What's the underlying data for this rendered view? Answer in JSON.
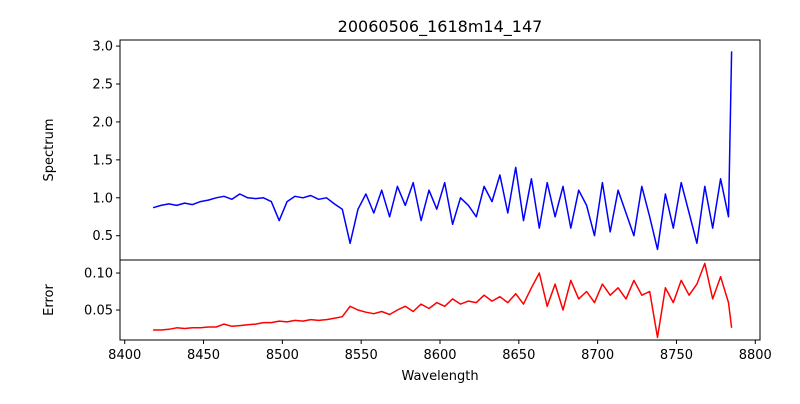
{
  "chart_data": [
    {
      "type": "line",
      "title": "20060506_1618m14_147",
      "xlabel": "",
      "ylabel": "Spectrum",
      "xlim": [
        8397,
        8803
      ],
      "ylim": [
        0.18,
        3.08
      ],
      "yticks": [
        0.5,
        1.0,
        1.5,
        2.0,
        2.5,
        3.0
      ],
      "ytick_labels": [
        "0.5",
        "1.0",
        "1.5",
        "2.0",
        "2.5",
        "3.0"
      ],
      "grid": false,
      "series": [
        {
          "name": "Spectrum",
          "color": "#0000ff",
          "x": [
            8418,
            8423,
            8428,
            8433,
            8438,
            8443,
            8448,
            8453,
            8458,
            8463,
            8468,
            8473,
            8478,
            8483,
            8488,
            8493,
            8498,
            8503,
            8508,
            8513,
            8518,
            8523,
            8528,
            8533,
            8538,
            8543,
            8548,
            8553,
            8558,
            8563,
            8568,
            8573,
            8578,
            8583,
            8588,
            8593,
            8598,
            8603,
            8608,
            8613,
            8618,
            8623,
            8628,
            8633,
            8638,
            8643,
            8648,
            8653,
            8658,
            8663,
            8668,
            8673,
            8678,
            8683,
            8688,
            8693,
            8698,
            8703,
            8708,
            8713,
            8718,
            8723,
            8728,
            8733,
            8738,
            8743,
            8748,
            8753,
            8758,
            8763,
            8768,
            8773,
            8778,
            8783,
            8785
          ],
          "y": [
            0.87,
            0.9,
            0.92,
            0.9,
            0.93,
            0.91,
            0.95,
            0.97,
            1.0,
            1.02,
            0.98,
            1.05,
            1.0,
            0.99,
            1.0,
            0.95,
            0.7,
            0.95,
            1.02,
            1.0,
            1.03,
            0.98,
            1.0,
            0.92,
            0.85,
            0.4,
            0.85,
            1.05,
            0.8,
            1.1,
            0.75,
            1.15,
            0.9,
            1.2,
            0.7,
            1.1,
            0.85,
            1.2,
            0.65,
            1.0,
            0.9,
            0.75,
            1.15,
            0.95,
            1.3,
            0.8,
            1.4,
            0.7,
            1.25,
            0.6,
            1.2,
            0.75,
            1.15,
            0.6,
            1.1,
            0.9,
            0.5,
            1.2,
            0.55,
            1.1,
            0.8,
            0.5,
            1.15,
            0.75,
            0.32,
            1.05,
            0.6,
            1.2,
            0.8,
            0.4,
            1.15,
            0.6,
            1.25,
            0.75,
            2.93
          ]
        }
      ]
    },
    {
      "type": "line",
      "xlabel": "Wavelength",
      "ylabel": "Error",
      "xlim": [
        8397,
        8803
      ],
      "ylim": [
        0.0095,
        0.1176
      ],
      "xticks": [
        8400,
        8450,
        8500,
        8550,
        8600,
        8650,
        8700,
        8750,
        8800
      ],
      "xtick_labels": [
        "8400",
        "8450",
        "8500",
        "8550",
        "8600",
        "8650",
        "8700",
        "8750",
        "8800"
      ],
      "yticks": [
        0.05,
        0.1
      ],
      "ytick_labels": [
        "0.05",
        "0.10"
      ],
      "grid": false,
      "series": [
        {
          "name": "Error",
          "color": "#ff0000",
          "x": [
            8418,
            8423,
            8428,
            8433,
            8438,
            8443,
            8448,
            8453,
            8458,
            8463,
            8468,
            8473,
            8478,
            8483,
            8488,
            8493,
            8498,
            8503,
            8508,
            8513,
            8518,
            8523,
            8528,
            8533,
            8538,
            8543,
            8548,
            8553,
            8558,
            8563,
            8568,
            8573,
            8578,
            8583,
            8588,
            8593,
            8598,
            8603,
            8608,
            8613,
            8618,
            8623,
            8628,
            8633,
            8638,
            8643,
            8648,
            8653,
            8658,
            8663,
            8668,
            8673,
            8678,
            8683,
            8688,
            8693,
            8698,
            8703,
            8708,
            8713,
            8718,
            8723,
            8728,
            8733,
            8738,
            8743,
            8748,
            8753,
            8758,
            8763,
            8768,
            8773,
            8778,
            8783,
            8785
          ],
          "y": [
            0.023,
            0.023,
            0.024,
            0.026,
            0.025,
            0.026,
            0.026,
            0.027,
            0.027,
            0.031,
            0.028,
            0.029,
            0.03,
            0.031,
            0.033,
            0.033,
            0.035,
            0.034,
            0.036,
            0.035,
            0.037,
            0.036,
            0.037,
            0.039,
            0.041,
            0.055,
            0.05,
            0.047,
            0.045,
            0.048,
            0.044,
            0.05,
            0.055,
            0.048,
            0.058,
            0.052,
            0.06,
            0.055,
            0.065,
            0.058,
            0.062,
            0.06,
            0.07,
            0.062,
            0.068,
            0.06,
            0.072,
            0.058,
            0.08,
            0.1,
            0.055,
            0.085,
            0.05,
            0.09,
            0.065,
            0.075,
            0.06,
            0.085,
            0.07,
            0.08,
            0.065,
            0.09,
            0.07,
            0.075,
            0.013,
            0.08,
            0.06,
            0.09,
            0.07,
            0.085,
            0.113,
            0.065,
            0.095,
            0.06,
            0.026
          ]
        }
      ]
    }
  ]
}
